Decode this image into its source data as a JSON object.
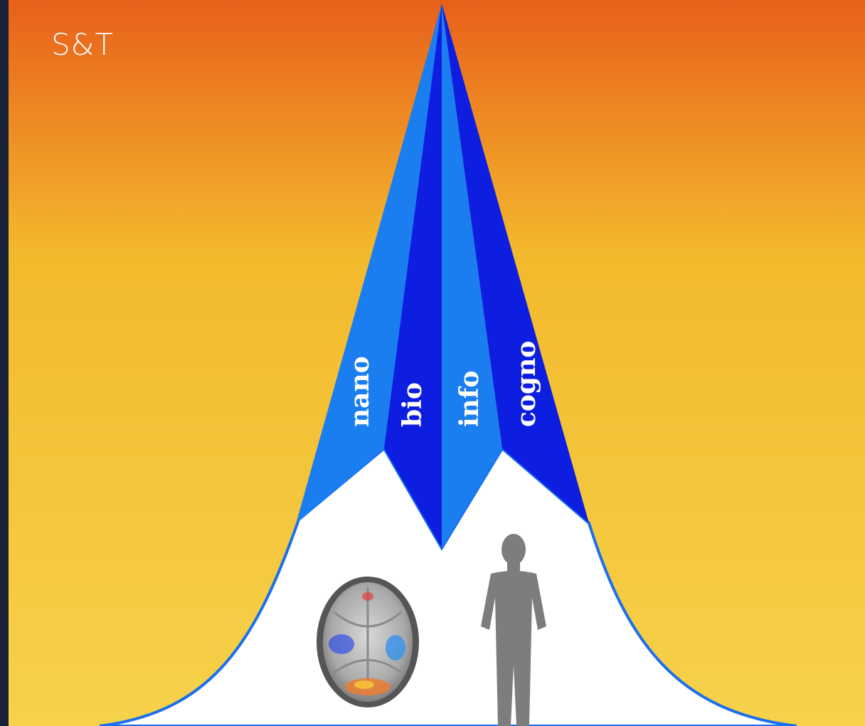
{
  "title": "S&T",
  "bands": [
    {
      "name": "nano",
      "label": "nano",
      "color": "#1a7df0"
    },
    {
      "name": "bio",
      "label": "bio",
      "color": "#0d1ee0"
    },
    {
      "name": "info",
      "label": "info",
      "color": "#1a7df0"
    },
    {
      "name": "cogno",
      "label": "cogno",
      "color": "#0d1ee0"
    }
  ],
  "colors": {
    "background_top": "#e8601a",
    "background_mid": "#f3b92d",
    "background_bottom": "#f6d24a",
    "bell_fill": "#ffffff",
    "bell_outline": "#1a6ff0",
    "human_silhouette": "#7d7d7d",
    "frame_edge": "#1a2238"
  },
  "icons": [
    "brain-scan-icon",
    "human-silhouette-icon"
  ]
}
